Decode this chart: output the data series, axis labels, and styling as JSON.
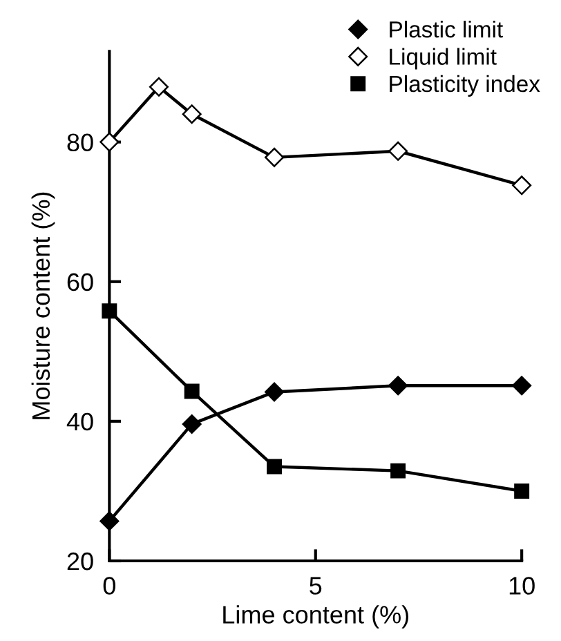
{
  "chart_data": {
    "type": "line",
    "xlabel": "Lime content (%)",
    "ylabel": "Moisture content (%)",
    "xlim": [
      0,
      10
    ],
    "xticks": [
      0,
      5,
      10
    ],
    "ylim": [
      20,
      93
    ],
    "yticks": [
      20,
      40,
      60,
      80
    ],
    "grid": false,
    "legend": "top right",
    "line_style": "solid",
    "series": [
      {
        "name": "Plastic limit",
        "color": "#000000",
        "marker": "diamond",
        "x": [
          0,
          2,
          4,
          7,
          10
        ],
        "values": [
          25.7,
          39.6,
          44.2,
          45.1,
          45.1
        ]
      },
      {
        "name": "Liquid limit",
        "color": "#000000",
        "marker": "diamond",
        "x": [
          0,
          1.2,
          2,
          4,
          7,
          10
        ],
        "values": [
          80,
          87.9,
          84.0,
          77.8,
          78.7,
          73.8
        ]
      },
      {
        "name": "Plasticity index",
        "color": "#000000",
        "marker": "square",
        "x": [
          0,
          2,
          4,
          7,
          10
        ],
        "values": [
          55.8,
          44.3,
          33.5,
          32.9,
          30.0
        ]
      }
    ]
  }
}
